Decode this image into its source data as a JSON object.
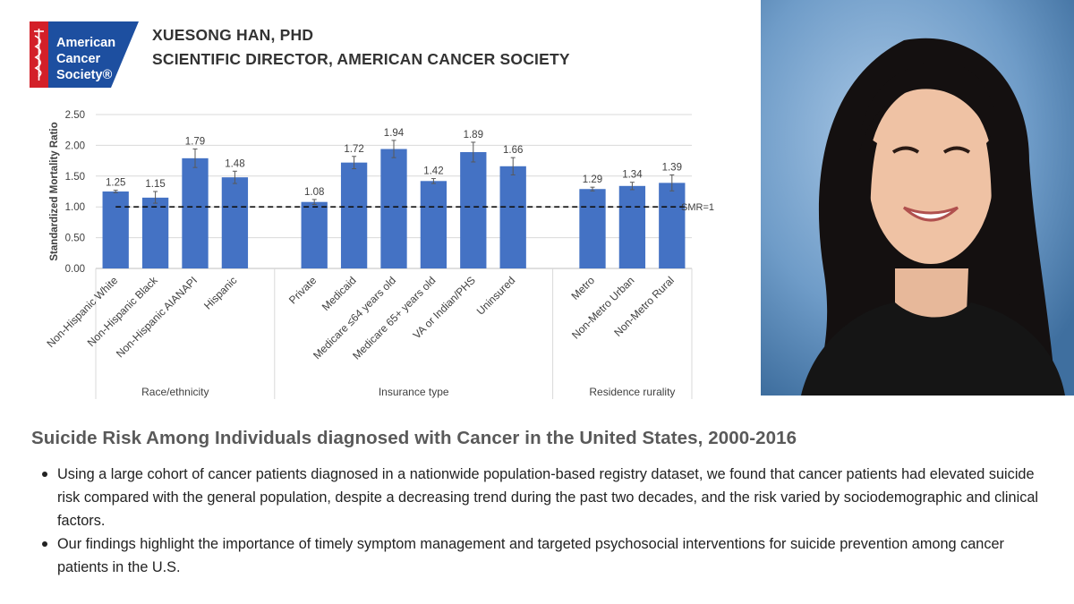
{
  "logo": {
    "lines": [
      "American",
      "Cancer",
      "Society®"
    ],
    "brand_color": "#d32029"
  },
  "header": {
    "name": "XUESONG HAN, PHD",
    "title": "SCIENTIFIC DIRECTOR, AMERICAN CANCER SOCIETY"
  },
  "headline": "Suicide Risk Among Individuals diagnosed with Cancer in the United States, 2000-2016",
  "bullets": [
    "Using a large cohort of cancer patients diagnosed in a nationwide population-based registry dataset, we found that cancer patients had elevated suicide risk compared with the general population, despite a decreasing trend during the past two decades, and the risk varied by sociodemographic and clinical factors.",
    "Our findings highlight the importance of timely symptom management and targeted psychosocial interventions for suicide prevention among cancer patients in the U.S."
  ],
  "colors": {
    "bar": "#4472c4",
    "text_dark": "#333333",
    "headline": "#595959",
    "photo_background": "#6f9cc8"
  },
  "chart_data": {
    "type": "bar",
    "ylabel": "Standardized Mortality Ratio",
    "ylim": [
      0,
      2.5
    ],
    "yticks": [
      "0.00",
      "0.50",
      "1.00",
      "1.50",
      "2.00",
      "2.50"
    ],
    "reference_line": {
      "value": 1.0,
      "label": "SMR=1",
      "style": "dashed"
    },
    "grid": "horizontal",
    "groups": [
      {
        "label": "Race/ethnicity",
        "categories": [
          "Non-Hispanic White",
          "Non-Hispanic Black",
          "Non-Hispanic AIANAPI",
          "Hispanic"
        ],
        "values": [
          1.25,
          1.15,
          1.79,
          1.48
        ],
        "labels": [
          "1.25",
          "1.15",
          "1.79",
          "1.48"
        ],
        "ci_low": [
          1.23,
          1.06,
          1.64,
          1.38
        ],
        "ci_high": [
          1.27,
          1.25,
          1.94,
          1.58
        ]
      },
      {
        "label": "Insurance type",
        "categories": [
          "Private",
          "Medicaid",
          "Medicare ≤64 years old",
          "Medicare 65+ years old",
          "VA or Indian/PHS",
          "Uninsured"
        ],
        "values": [
          1.08,
          1.72,
          1.94,
          1.42,
          1.89,
          1.66
        ],
        "labels": [
          "1.08",
          "1.72",
          "1.94",
          "1.42",
          "1.89",
          "1.66"
        ],
        "ci_low": [
          1.04,
          1.62,
          1.8,
          1.38,
          1.73,
          1.52
        ],
        "ci_high": [
          1.12,
          1.82,
          2.08,
          1.46,
          2.05,
          1.8
        ]
      },
      {
        "label": "Residence rurality",
        "categories": [
          "Metro",
          "Non-Metro Urban",
          "Non-Metro Rural"
        ],
        "values": [
          1.29,
          1.34,
          1.39
        ],
        "labels": [
          "1.29",
          "1.34",
          "1.39"
        ],
        "ci_low": [
          1.26,
          1.28,
          1.26
        ],
        "ci_high": [
          1.32,
          1.4,
          1.52
        ]
      }
    ]
  }
}
